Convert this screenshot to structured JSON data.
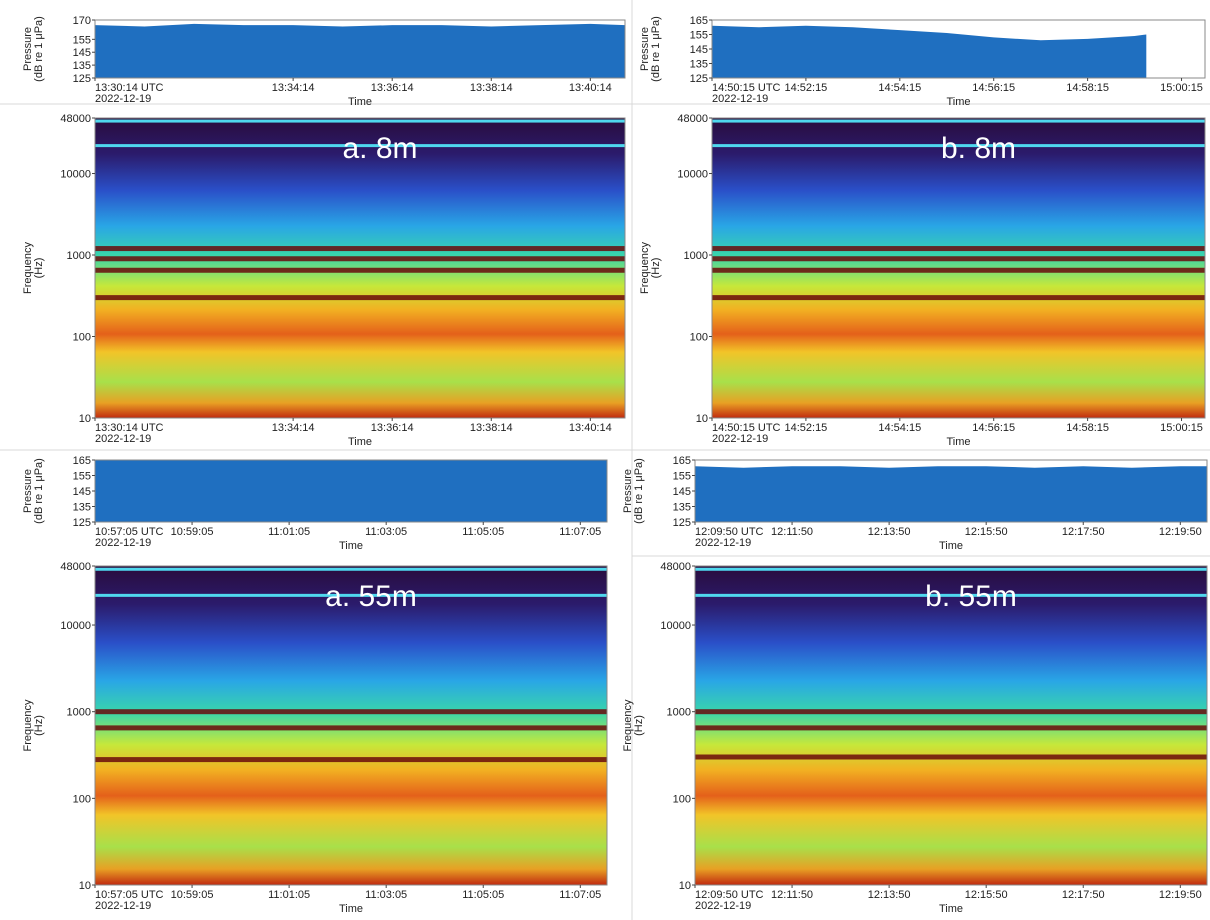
{
  "chart_data": [
    {
      "type": "area",
      "ylabel": [
        "Pressure",
        "(dB re 1 μPa)"
      ],
      "xlabel": "Time",
      "date": "2022-12-19",
      "color": "#1f6fc0",
      "xlim": [
        0,
        10.7
      ],
      "ylim": [
        125,
        170
      ],
      "yticks": [
        125,
        135,
        145,
        155,
        170
      ],
      "xticks": [
        {
          "value": 0,
          "label": "13:30:14 UTC"
        },
        {
          "value": 4,
          "label": "13:34:14"
        },
        {
          "value": 6,
          "label": "13:36:14"
        },
        {
          "value": 8,
          "label": "13:38:14"
        },
        {
          "value": 10,
          "label": "13:40:14"
        }
      ],
      "x": [
        0,
        1,
        2,
        3,
        4,
        5,
        6,
        7,
        8,
        9,
        10,
        10.7
      ],
      "values": [
        166,
        165,
        167,
        166,
        166,
        165,
        166,
        166,
        165,
        166,
        167,
        166
      ]
    },
    {
      "type": "spectrogram",
      "ylabel": [
        "Frequency",
        "(Hz)"
      ],
      "xlabel": "Time",
      "date": "2022-12-19",
      "annotation": "a. 8m",
      "log_scale": true,
      "xlim": [
        0,
        10.7
      ],
      "ylim": [
        10,
        48000
      ],
      "yticks": [
        10,
        100,
        1000,
        10000,
        48000
      ],
      "xticks": [
        {
          "value": 0,
          "label": "13:30:14 UTC"
        },
        {
          "value": 4,
          "label": "13:34:14"
        },
        {
          "value": 6,
          "label": "13:36:14"
        },
        {
          "value": 8,
          "label": "13:38:14"
        },
        {
          "value": 10,
          "label": "13:40:14"
        }
      ],
      "tonal_lines_hz": [
        44000,
        22000
      ],
      "dark_bands_hz": [
        300,
        650,
        900,
        1200
      ]
    },
    {
      "type": "area",
      "ylabel": [
        "Pressure",
        "(dB re 1 μPa)"
      ],
      "xlabel": "Time",
      "date": "2022-12-19",
      "color": "#1f6fc0",
      "xlim": [
        0,
        10.5
      ],
      "ylim": [
        125,
        165
      ],
      "yticks": [
        125,
        135,
        145,
        155,
        165
      ],
      "xticks": [
        {
          "value": 0,
          "label": "14:50:15 UTC"
        },
        {
          "value": 2,
          "label": "14:52:15"
        },
        {
          "value": 4,
          "label": "14:54:15"
        },
        {
          "value": 6,
          "label": "14:56:15"
        },
        {
          "value": 8,
          "label": "14:58:15"
        },
        {
          "value": 10,
          "label": "15:00:15"
        }
      ],
      "x": [
        0,
        1,
        2,
        3,
        4,
        5,
        6,
        7,
        8,
        9,
        9.25
      ],
      "values": [
        161,
        160,
        161,
        160,
        158,
        156,
        153,
        151,
        152,
        154,
        155
      ]
    },
    {
      "type": "spectrogram",
      "ylabel": [
        "Frequency",
        "(Hz)"
      ],
      "xlabel": "Time",
      "date": "2022-12-19",
      "annotation": "b. 8m",
      "log_scale": true,
      "xlim": [
        0,
        10.5
      ],
      "ylim": [
        10,
        48000
      ],
      "yticks": [
        10,
        100,
        1000,
        10000,
        48000
      ],
      "xticks": [
        {
          "value": 0,
          "label": "14:50:15 UTC"
        },
        {
          "value": 2,
          "label": "14:52:15"
        },
        {
          "value": 4,
          "label": "14:54:15"
        },
        {
          "value": 6,
          "label": "14:56:15"
        },
        {
          "value": 8,
          "label": "14:58:15"
        },
        {
          "value": 10,
          "label": "15:00:15"
        }
      ],
      "tonal_lines_hz": [
        44000,
        22000
      ],
      "dark_bands_hz": [
        300,
        650,
        900,
        1200
      ]
    },
    {
      "type": "area",
      "ylabel": [
        "Pressure",
        "(dB re 1 μPa)"
      ],
      "xlabel": "Time",
      "date": "2022-12-19",
      "color": "#1f6fc0",
      "xlim": [
        0,
        10.55
      ],
      "ylim": [
        125,
        165
      ],
      "yticks": [
        125,
        135,
        145,
        155,
        165
      ],
      "xticks": [
        {
          "value": 0,
          "label": "10:57:05 UTC"
        },
        {
          "value": 2,
          "label": "10:59:05"
        },
        {
          "value": 4,
          "label": "11:01:05"
        },
        {
          "value": 6,
          "label": "11:03:05"
        },
        {
          "value": 8,
          "label": "11:05:05"
        },
        {
          "value": 10,
          "label": "11:07:05"
        }
      ],
      "x": [
        0,
        1,
        2,
        3,
        4,
        5,
        6,
        7,
        8,
        9,
        10,
        10.55
      ],
      "values": [
        165,
        165,
        165,
        165,
        165,
        165,
        165,
        165,
        165,
        165,
        165,
        165
      ]
    },
    {
      "type": "spectrogram",
      "ylabel": [
        "Frequency",
        "(Hz)"
      ],
      "xlabel": "Time",
      "date": "2022-12-19",
      "annotation": "a. 55m",
      "log_scale": true,
      "xlim": [
        0,
        10.55
      ],
      "ylim": [
        10,
        48000
      ],
      "yticks": [
        10,
        100,
        1000,
        10000,
        48000
      ],
      "xticks": [
        {
          "value": 0,
          "label": "10:57:05 UTC"
        },
        {
          "value": 2,
          "label": "10:59:05"
        },
        {
          "value": 4,
          "label": "11:01:05"
        },
        {
          "value": 6,
          "label": "11:03:05"
        },
        {
          "value": 8,
          "label": "11:05:05"
        },
        {
          "value": 10,
          "label": "11:07:05"
        }
      ],
      "tonal_lines_hz": [
        44000,
        22000
      ],
      "dark_bands_hz": [
        280,
        650,
        1000
      ]
    },
    {
      "type": "area",
      "ylabel": [
        "Pressure",
        "(dB re 1 μPa)"
      ],
      "xlabel": "Time",
      "date": "2022-12-19",
      "color": "#1f6fc0",
      "xlim": [
        0,
        10.55
      ],
      "ylim": [
        125,
        165
      ],
      "yticks": [
        125,
        135,
        145,
        155,
        165
      ],
      "xticks": [
        {
          "value": 0,
          "label": "12:09:50 UTC"
        },
        {
          "value": 2,
          "label": "12:11:50"
        },
        {
          "value": 4,
          "label": "12:13:50"
        },
        {
          "value": 6,
          "label": "12:15:50"
        },
        {
          "value": 8,
          "label": "12:17:50"
        },
        {
          "value": 10,
          "label": "12:19:50"
        }
      ],
      "x": [
        0,
        1,
        2,
        3,
        4,
        5,
        6,
        7,
        8,
        9,
        10,
        10.55
      ],
      "values": [
        161,
        160,
        161,
        161,
        160,
        161,
        161,
        160,
        161,
        160,
        161,
        161
      ]
    },
    {
      "type": "spectrogram",
      "ylabel": [
        "Frequency",
        "(Hz)"
      ],
      "xlabel": "Time",
      "date": "2022-12-19",
      "annotation": "b. 55m",
      "log_scale": true,
      "xlim": [
        0,
        10.55
      ],
      "ylim": [
        10,
        48000
      ],
      "yticks": [
        10,
        100,
        1000,
        10000,
        48000
      ],
      "xticks": [
        {
          "value": 0,
          "label": "12:09:50 UTC"
        },
        {
          "value": 2,
          "label": "12:11:50"
        },
        {
          "value": 4,
          "label": "12:13:50"
        },
        {
          "value": 6,
          "label": "12:15:50"
        },
        {
          "value": 8,
          "label": "12:17:50"
        },
        {
          "value": 10,
          "label": "12:19:50"
        }
      ],
      "tonal_lines_hz": [
        44000,
        22000
      ],
      "dark_bands_hz": [
        300,
        650,
        1000
      ]
    }
  ]
}
